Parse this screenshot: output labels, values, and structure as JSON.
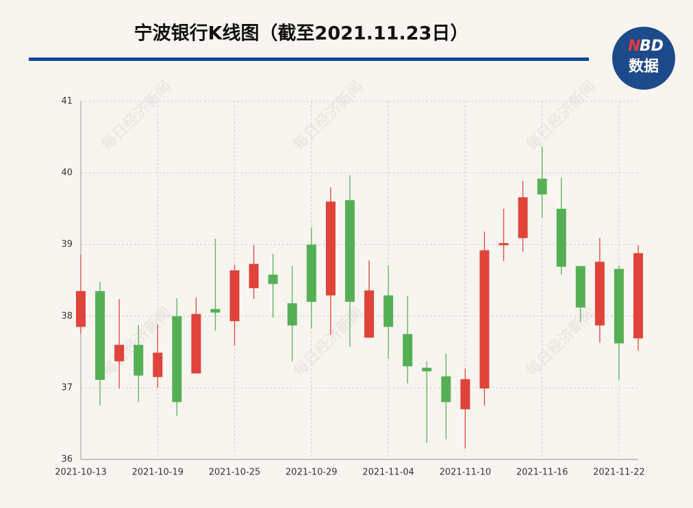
{
  "chart_data": {
    "type": "candlestick",
    "title": "宁波银行K线图（截至2021.11.23日）",
    "logo": {
      "n": "N",
      "bd": "BD",
      "text": "数据"
    },
    "watermark": "每日经济新闻",
    "categories": [
      "2021-10-13",
      null,
      null,
      null,
      "2021-10-19",
      null,
      null,
      null,
      "2021-10-25",
      null,
      null,
      null,
      "2021-10-29",
      null,
      null,
      null,
      "2021-11-04",
      null,
      null,
      null,
      "2021-11-10",
      null,
      null,
      null,
      "2021-11-16",
      null,
      null,
      null,
      "2021-11-22",
      null
    ],
    "open": [
      37.85,
      38.35,
      37.37,
      37.6,
      37.15,
      38.0,
      37.2,
      38.1,
      37.93,
      38.39,
      38.58,
      38.18,
      39.0,
      38.29,
      39.62,
      37.7,
      38.29,
      37.75,
      37.28,
      37.16,
      36.7,
      36.99,
      38.99,
      39.09,
      39.92,
      39.5,
      38.7,
      37.87,
      38.66,
      37.69
    ],
    "close": [
      38.35,
      37.11,
      37.6,
      37.17,
      37.49,
      36.8,
      38.03,
      38.05,
      38.64,
      38.73,
      38.45,
      37.87,
      38.2,
      39.6,
      38.2,
      38.36,
      37.85,
      37.3,
      37.23,
      36.8,
      37.12,
      38.92,
      39.02,
      39.66,
      39.7,
      38.69,
      38.12,
      38.76,
      37.62,
      38.88
    ],
    "high": [
      38.86,
      38.48,
      38.24,
      37.88,
      37.88,
      38.25,
      38.26,
      39.08,
      38.72,
      38.99,
      38.87,
      38.7,
      39.24,
      39.8,
      39.97,
      38.78,
      38.71,
      38.28,
      37.37,
      37.48,
      37.27,
      39.18,
      39.5,
      39.89,
      40.37,
      39.93,
      38.7,
      39.09,
      38.71,
      38.99
    ],
    "low": [
      37.75,
      36.75,
      36.99,
      36.8,
      37.0,
      36.61,
      37.2,
      37.8,
      37.59,
      38.24,
      37.98,
      37.37,
      37.83,
      37.74,
      37.57,
      37.7,
      37.4,
      37.06,
      36.23,
      36.28,
      36.15,
      36.75,
      38.77,
      38.9,
      39.37,
      38.58,
      37.92,
      37.63,
      37.11,
      37.52
    ],
    "up_color": "#e0433a",
    "down_color": "#55b055",
    "ylim": [
      36,
      41
    ],
    "yticks": [
      36,
      37,
      38,
      39,
      40,
      41
    ],
    "grid": true
  }
}
